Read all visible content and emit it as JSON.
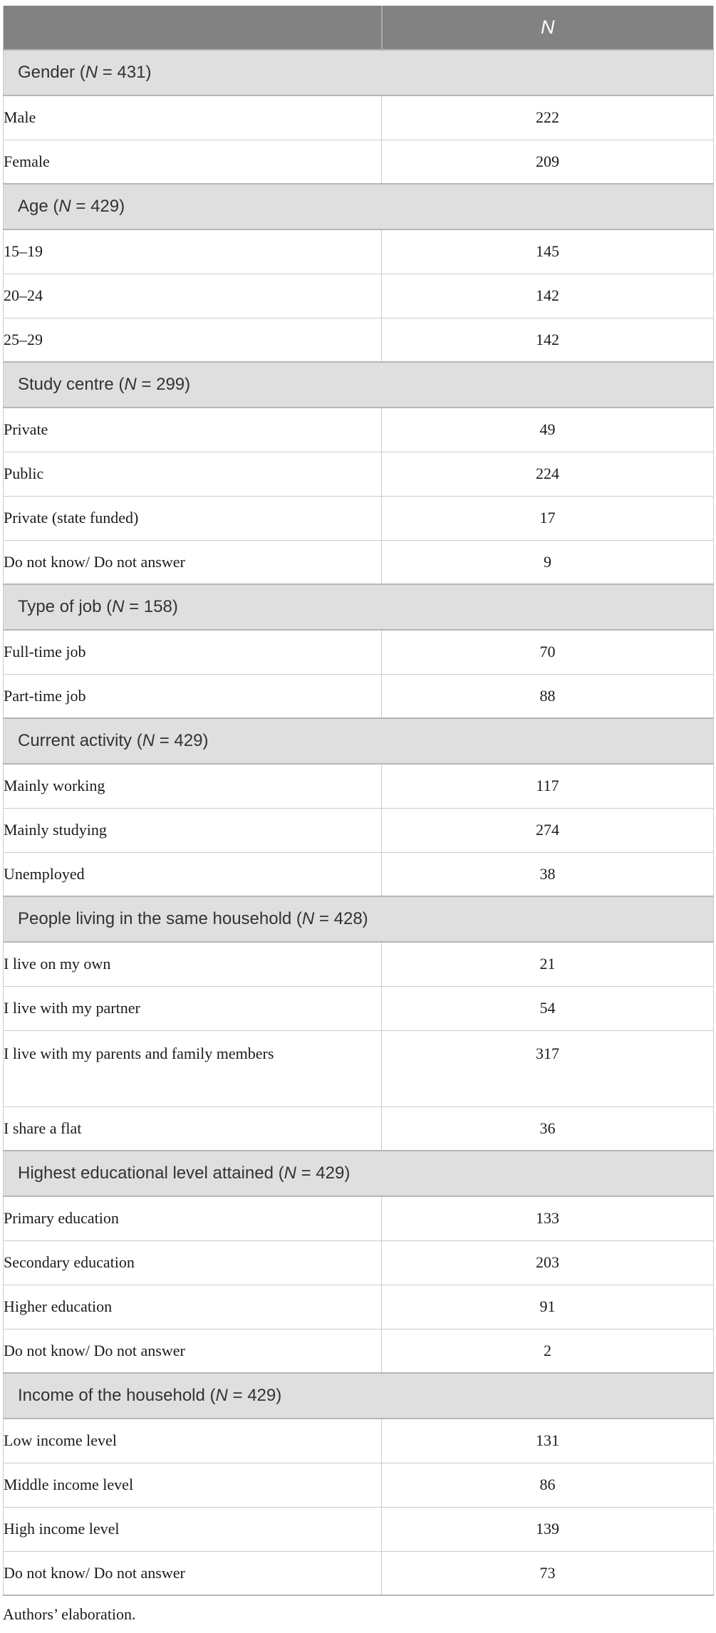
{
  "colors": {
    "header_bg": "#828282",
    "header_text": "#ffffff",
    "section_bg": "#e0dfe0",
    "section_border": "#b7b6b6",
    "row_border": "#cbcbcb",
    "divider": "#a8a8a8",
    "section_text": "#333333",
    "body_text": "#1b1b1b"
  },
  "table": {
    "header": {
      "label_column": "",
      "n_column": "N"
    },
    "n_symbol": "N",
    "sections": [
      {
        "title": "Gender",
        "n": "431",
        "rows": [
          {
            "label": "Male",
            "value": "222"
          },
          {
            "label": "Female",
            "value": "209"
          }
        ]
      },
      {
        "title": "Age",
        "n": "429",
        "rows": [
          {
            "label": "15–19",
            "value": "145"
          },
          {
            "label": "20–24",
            "value": "142"
          },
          {
            "label": "25–29",
            "value": "142"
          }
        ]
      },
      {
        "title": "Study centre",
        "n": "299",
        "rows": [
          {
            "label": "Private",
            "value": "49"
          },
          {
            "label": "Public",
            "value": "224"
          },
          {
            "label": "Private (state funded)",
            "value": "17"
          },
          {
            "label": "Do not know/ Do not answer",
            "value": "9"
          }
        ]
      },
      {
        "title": "Type of job",
        "n": "158",
        "rows": [
          {
            "label": "Full-time job",
            "value": "70"
          },
          {
            "label": "Part-time job",
            "value": "88"
          }
        ]
      },
      {
        "title": "Current activity",
        "n": "429",
        "rows": [
          {
            "label": "Mainly working",
            "value": "117"
          },
          {
            "label": "Mainly studying",
            "value": "274"
          },
          {
            "label": "Unemployed",
            "value": "38"
          }
        ]
      },
      {
        "title": "People living in the same household",
        "n": "428",
        "rows": [
          {
            "label": "I live on my own",
            "value": "21"
          },
          {
            "label": "I live with my partner",
            "value": "54"
          },
          {
            "label": "I live with my parents and family members",
            "value": "317",
            "wrap": true
          },
          {
            "label": "I share a flat",
            "value": "36"
          }
        ]
      },
      {
        "title": "Highest educational level attained",
        "n": "429",
        "rows": [
          {
            "label": "Primary education",
            "value": "133"
          },
          {
            "label": "Secondary education",
            "value": "203"
          },
          {
            "label": "Higher education",
            "value": "91"
          },
          {
            "label": "Do not know/ Do not answer",
            "value": "2"
          }
        ]
      },
      {
        "title": "Income of the household",
        "n": "429",
        "rows": [
          {
            "label": "Low income level",
            "value": "131"
          },
          {
            "label": "Middle income level",
            "value": "86"
          },
          {
            "label": "High income level",
            "value": "139"
          },
          {
            "label": "Do not know/ Do not answer",
            "value": "73"
          }
        ]
      }
    ]
  },
  "footnote": "Authors’ elaboration."
}
